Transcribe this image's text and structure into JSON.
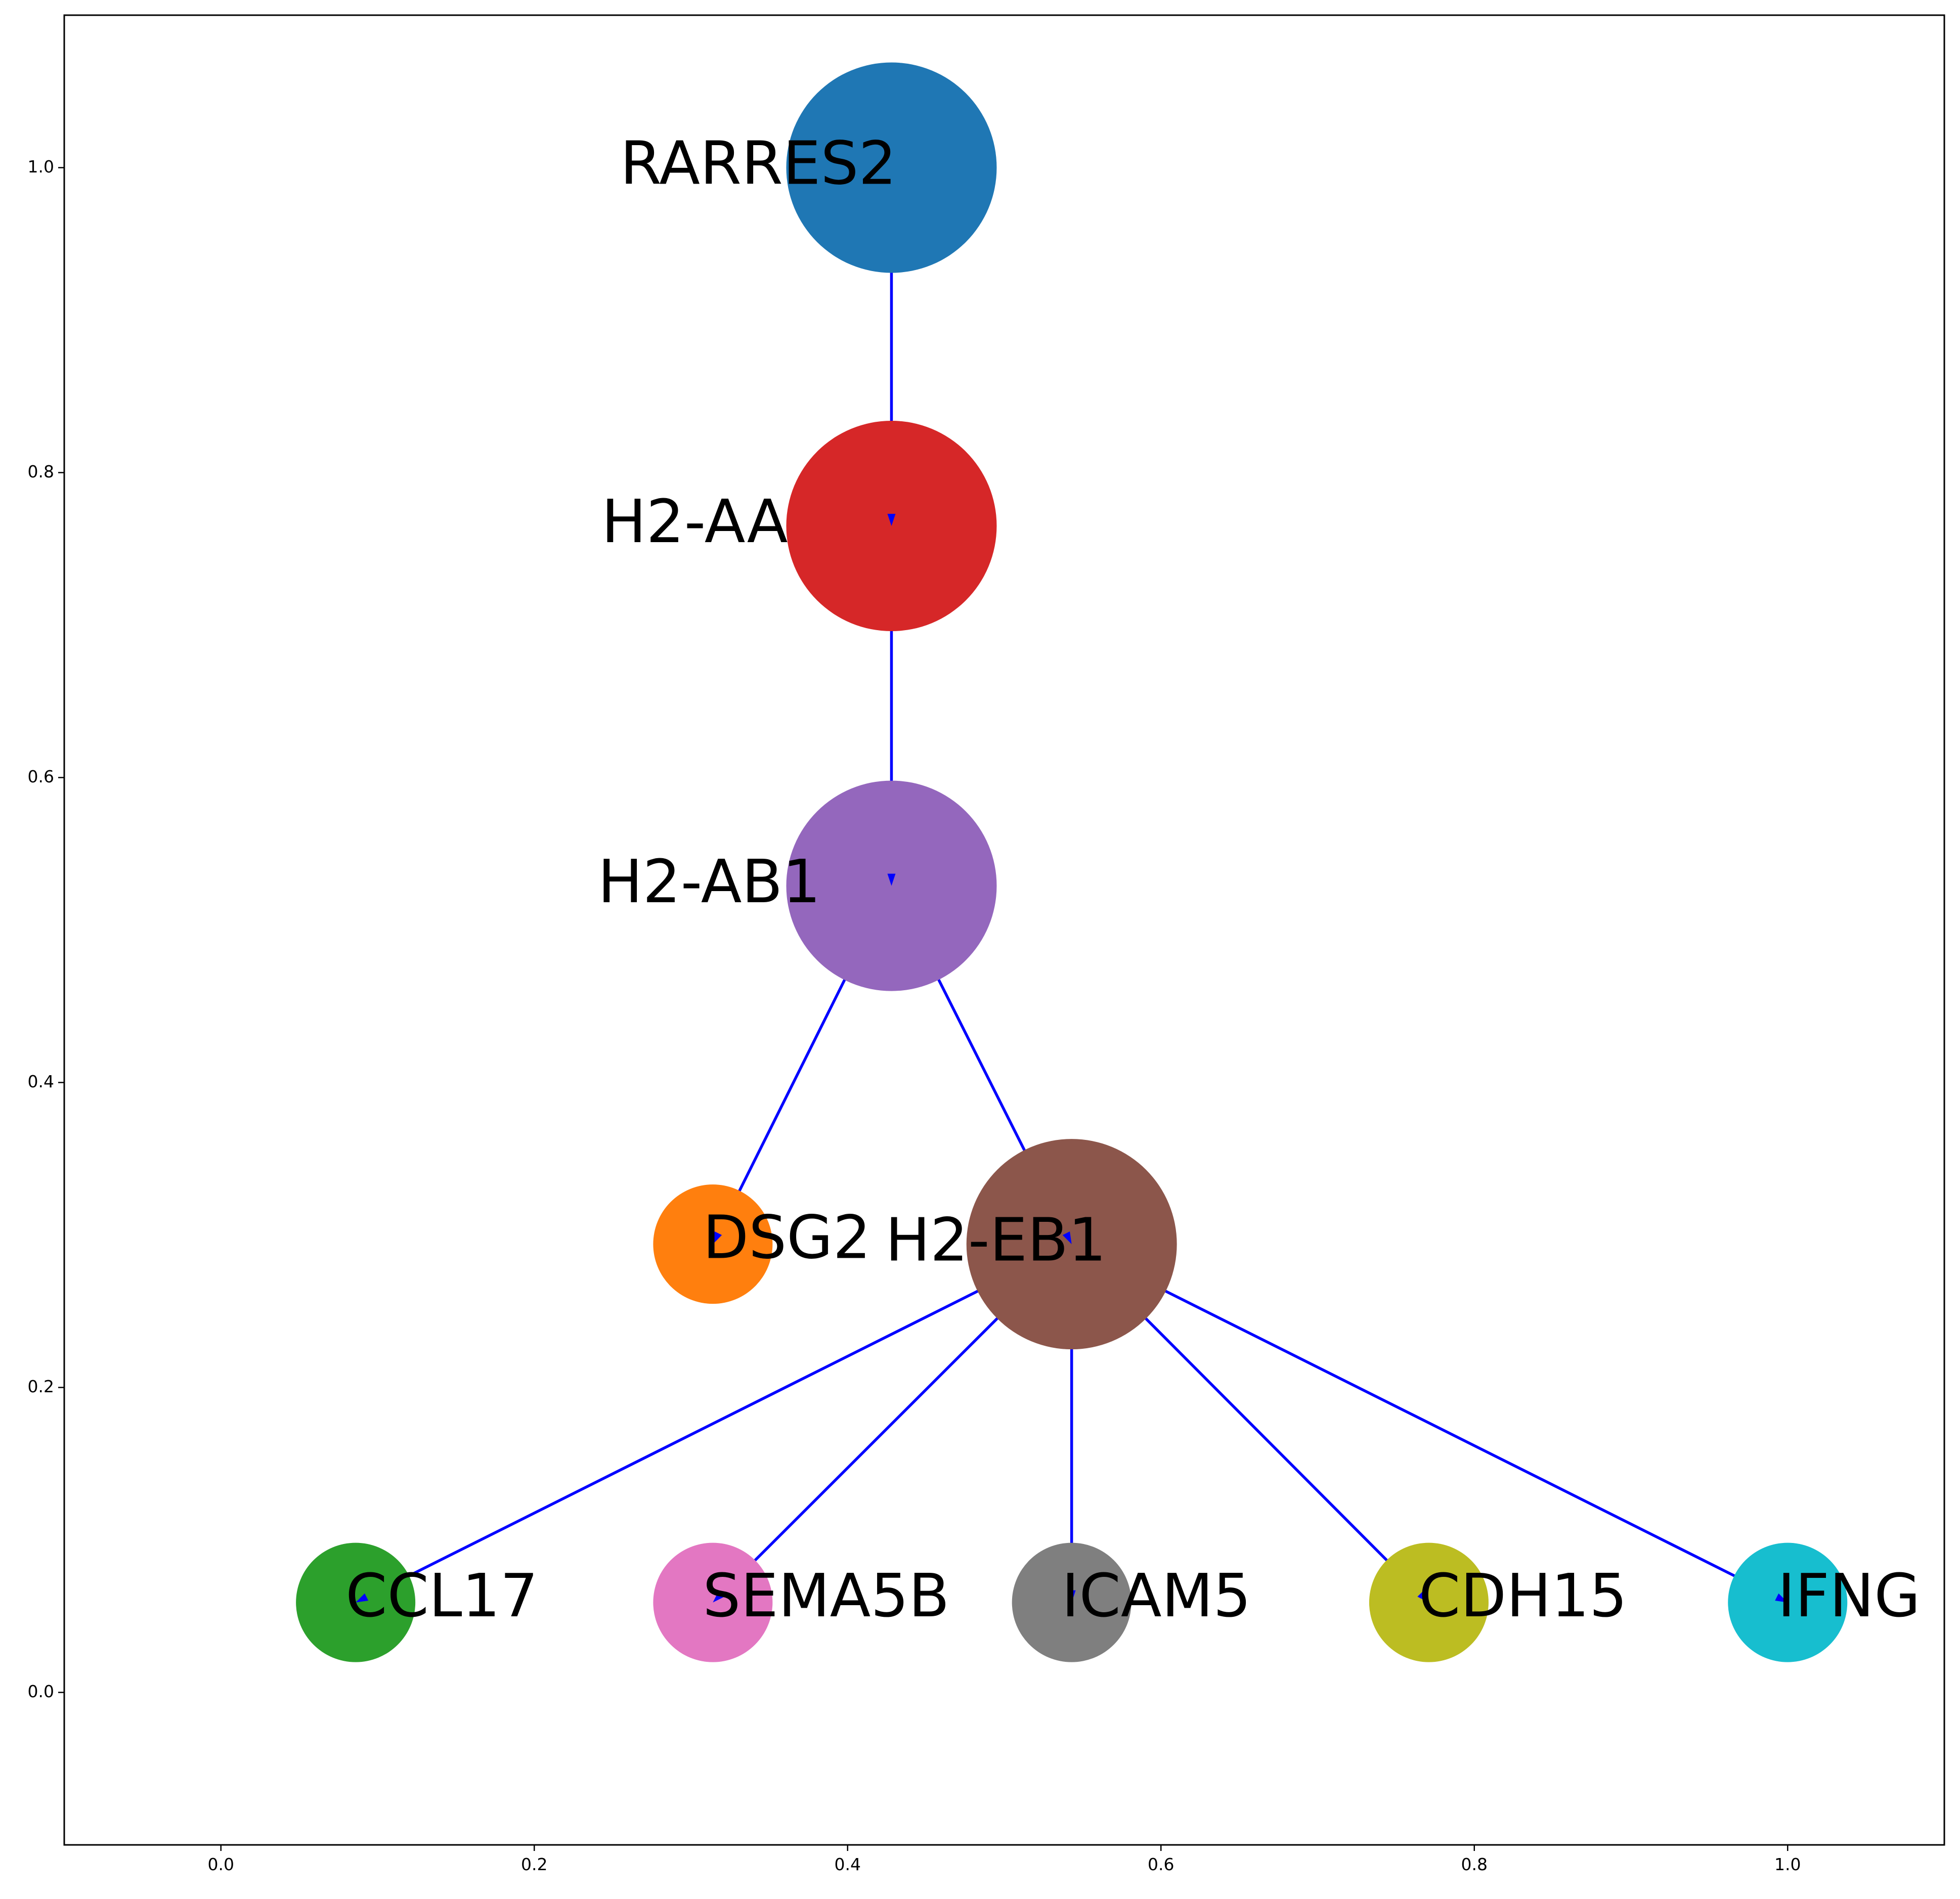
{
  "chart_data": {
    "type": "network",
    "xlim": [
      -0.1,
      1.1
    ],
    "ylim": [
      -0.1,
      1.1
    ],
    "xticks": [
      "0.0",
      "0.2",
      "0.4",
      "0.6",
      "0.8",
      "1.0"
    ],
    "yticks": [
      "0.0",
      "0.2",
      "0.4",
      "0.6",
      "0.8",
      "1.0"
    ],
    "edge_color": "#0000ff",
    "nodes": [
      {
        "id": "RARRES2",
        "label": "RARRES2",
        "x": 0.428,
        "y": 1.0,
        "size": "large",
        "color": "#1f77b4"
      },
      {
        "id": "H2-AA",
        "label": "H2-AA",
        "x": 0.428,
        "y": 0.765,
        "size": "large",
        "color": "#d62728"
      },
      {
        "id": "H2-AB1",
        "label": "H2-AB1",
        "x": 0.428,
        "y": 0.529,
        "size": "large",
        "color": "#9467bd"
      },
      {
        "id": "DSG2",
        "label": "DSG2",
        "x": 0.314,
        "y": 0.294,
        "size": "small",
        "color": "#ff7f0e"
      },
      {
        "id": "H2-EB1",
        "label": "H2-EB1",
        "x": 0.543,
        "y": 0.294,
        "size": "large",
        "color": "#8c564b"
      },
      {
        "id": "CCL17",
        "label": "CCL17",
        "x": 0.086,
        "y": 0.059,
        "size": "small",
        "color": "#2ca02c"
      },
      {
        "id": "SEMA5B",
        "label": "SEMA5B",
        "x": 0.314,
        "y": 0.059,
        "size": "small",
        "color": "#e377c2"
      },
      {
        "id": "ICAM5",
        "label": "ICAM5",
        "x": 0.543,
        "y": 0.059,
        "size": "small",
        "color": "#7f7f7f"
      },
      {
        "id": "CDH15",
        "label": "CDH15",
        "x": 0.771,
        "y": 0.059,
        "size": "small",
        "color": "#bcbd22"
      },
      {
        "id": "IFNG",
        "label": "IFNG",
        "x": 1.0,
        "y": 0.059,
        "size": "small",
        "color": "#17becf"
      }
    ],
    "edges": [
      {
        "source": "RARRES2",
        "target": "H2-AA"
      },
      {
        "source": "H2-AA",
        "target": "H2-AB1"
      },
      {
        "source": "H2-AB1",
        "target": "DSG2"
      },
      {
        "source": "H2-AB1",
        "target": "H2-EB1"
      },
      {
        "source": "H2-EB1",
        "target": "CCL17"
      },
      {
        "source": "H2-EB1",
        "target": "SEMA5B"
      },
      {
        "source": "H2-EB1",
        "target": "ICAM5"
      },
      {
        "source": "H2-EB1",
        "target": "CDH15"
      },
      {
        "source": "H2-EB1",
        "target": "IFNG"
      }
    ]
  }
}
